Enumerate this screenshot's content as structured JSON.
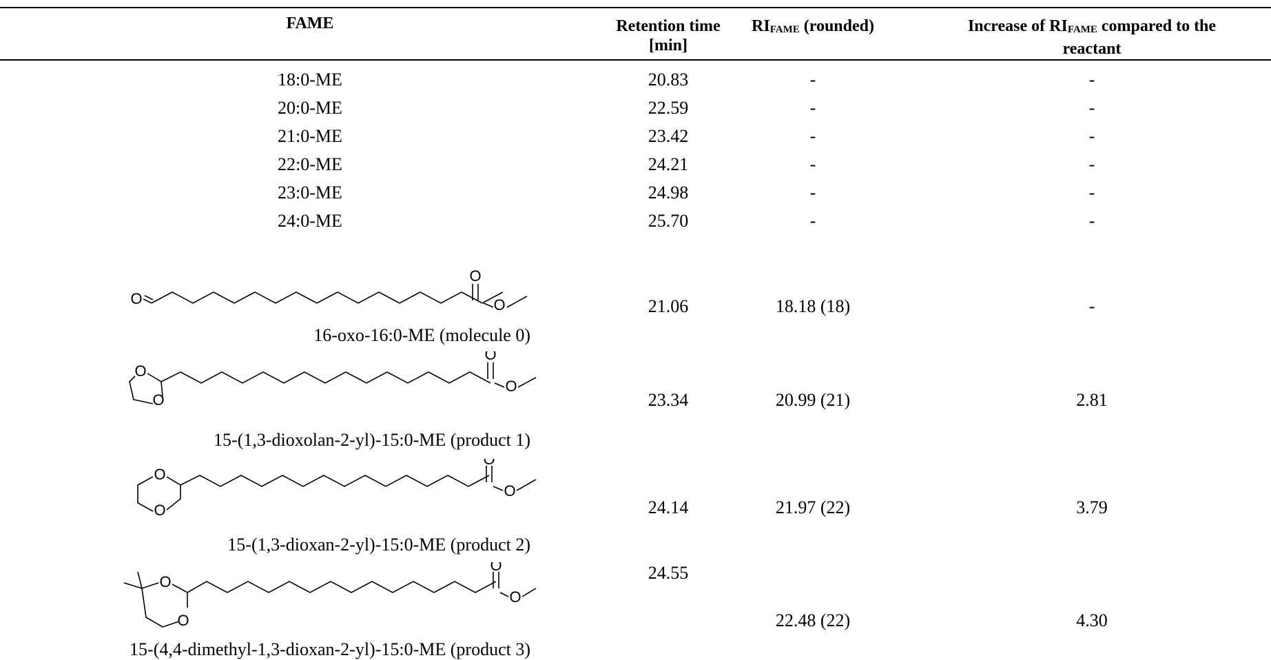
{
  "header": {
    "col_fame": "FAME",
    "col_rt_line1": "Retention time",
    "col_rt_line2": "[min]",
    "col_ri_prefix": "RI",
    "col_ri_sub": "FAME",
    "col_ri_suffix": " (rounded)",
    "col_inc_prefix": "Increase of RI",
    "col_inc_sub": "FAME",
    "col_inc_suffix": " compared to the",
    "col_inc_line2": "reactant"
  },
  "standards": [
    {
      "name": "18:0-ME",
      "rt": "20.83",
      "ri": "-",
      "inc": "-"
    },
    {
      "name": "20:0-ME",
      "rt": "22.59",
      "ri": "-",
      "inc": "-"
    },
    {
      "name": "21:0-ME",
      "rt": "23.42",
      "ri": "-",
      "inc": "-"
    },
    {
      "name": "22:0-ME",
      "rt": "24.21",
      "ri": "-",
      "inc": "-"
    },
    {
      "name": "23:0-ME",
      "rt": "24.98",
      "ri": "-",
      "inc": "-"
    },
    {
      "name": "24:0-ME",
      "rt": "25.70",
      "ri": "-",
      "inc": "-"
    }
  ],
  "molecules": [
    {
      "caption": "16-oxo-16:0-ME (molecule 0)",
      "rt": "21.06",
      "ri": "18.18 (18)",
      "inc": "-",
      "struct_icon": "aldehyde-ester-structure-icon"
    },
    {
      "caption": "15-(1,3-dioxolan-2-yl)-15:0-ME (product 1)",
      "rt": "23.34",
      "ri": "20.99 (21)",
      "inc": "2.81",
      "struct_icon": "dioxolane-ester-structure-icon"
    },
    {
      "caption": "15-(1,3-dioxan-2-yl)-15:0-ME (product 2)",
      "rt": "24.14",
      "ri": "21.97 (22)",
      "inc": "3.79",
      "struct_icon": "dioxane-ester-structure-icon"
    },
    {
      "caption": "15-(4,4-dimethyl-1,3-dioxan-2-yl)-15:0-ME (product 3)",
      "rt": "24.55",
      "ri": "22.48 (22)",
      "inc": "4.30",
      "struct_icon": "dimethyl-dioxane-ester-structure-icon"
    }
  ],
  "atoms": {
    "oxygen": "O"
  }
}
